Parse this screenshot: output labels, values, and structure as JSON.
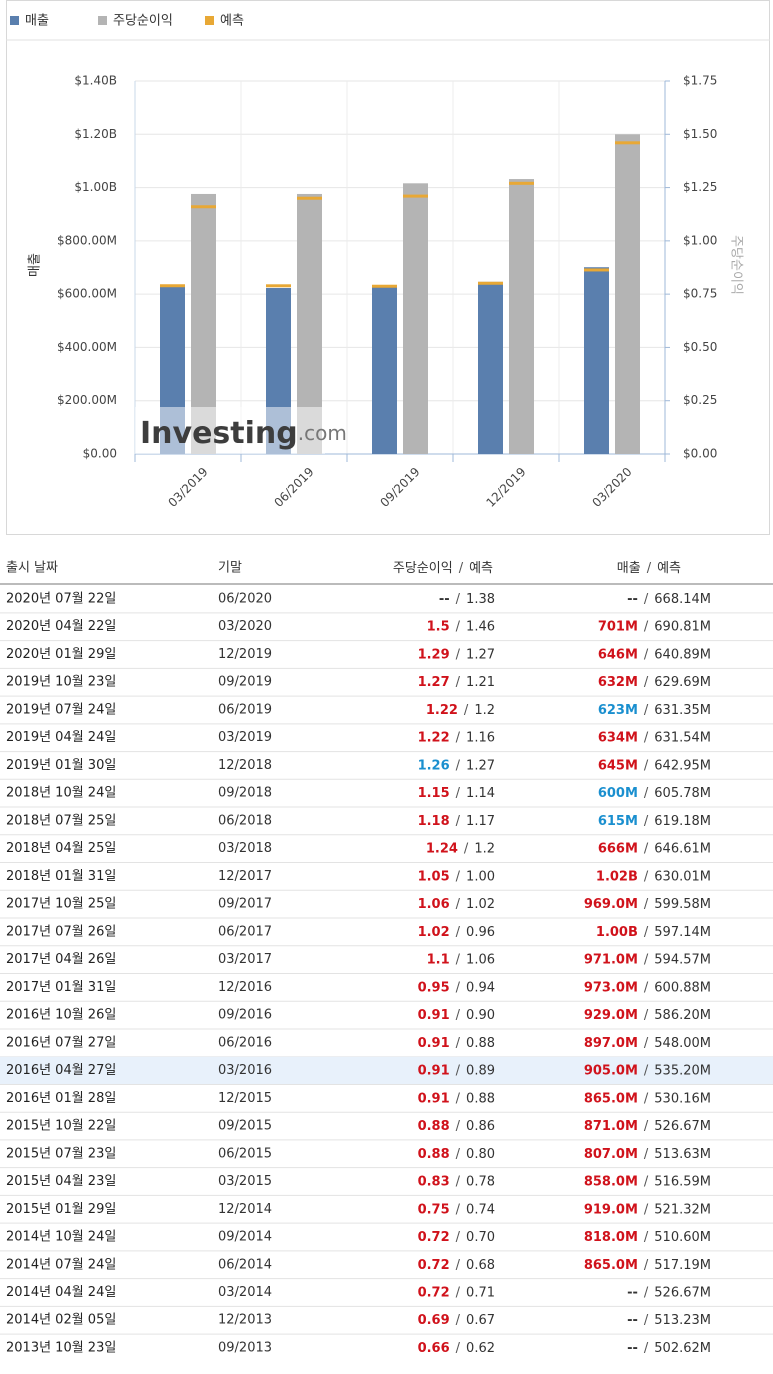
{
  "chart_data": {
    "type": "bar",
    "categories": [
      "03/2019",
      "06/2019",
      "09/2019",
      "12/2019",
      "03/2020"
    ],
    "series": [
      {
        "name": "매출",
        "color": "#5a7fae",
        "values": [
          634000000,
          623000000,
          632000000,
          646000000,
          701000000
        ],
        "forecast": [
          631540000,
          631350000,
          629690000,
          640890000,
          690810000
        ]
      },
      {
        "name": "주당순이익",
        "color": "#b4b4b4",
        "axis": "y2",
        "values": [
          1.22,
          1.22,
          1.27,
          1.29,
          1.5
        ],
        "forecast": [
          1.16,
          1.2,
          1.21,
          1.27,
          1.46
        ]
      }
    ],
    "forecast_name": "예측",
    "forecast_color": "#e8a835",
    "ylabel": "매출",
    "y2label": "주당순이익",
    "ylim": [
      0,
      1400000000
    ],
    "yticks": [
      {
        "value": 0,
        "label": "$0.00"
      },
      {
        "value": 200000000,
        "label": "$200.00M"
      },
      {
        "value": 400000000,
        "label": "$400.00M"
      },
      {
        "value": 600000000,
        "label": "$600.00M"
      },
      {
        "value": 800000000,
        "label": "$800.00M"
      },
      {
        "value": 1000000000,
        "label": "$1.00B"
      },
      {
        "value": 1200000000,
        "label": "$1.20B"
      },
      {
        "value": 1400000000,
        "label": "$1.40B"
      }
    ],
    "y2lim": [
      0,
      1.75
    ],
    "y2ticks": [
      {
        "value": 0,
        "label": "$0.00"
      },
      {
        "value": 0.25,
        "label": "$0.25"
      },
      {
        "value": 0.5,
        "label": "$0.50"
      },
      {
        "value": 0.75,
        "label": "$0.75"
      },
      {
        "value": 1,
        "label": "$1.00"
      },
      {
        "value": 1.25,
        "label": "$1.25"
      },
      {
        "value": 1.5,
        "label": "$1.50"
      },
      {
        "value": 1.75,
        "label": "$1.75"
      }
    ],
    "grid": true,
    "watermark": [
      "Investing",
      ".com"
    ]
  },
  "table": {
    "header": [
      "출시 날짜",
      "기말",
      "주당순이익",
      "예측",
      "매출",
      "예측"
    ],
    "separator": "/",
    "tone_colors": {
      "up": "#d0121b",
      "down": "#1a8fcf",
      "flat": "#333333"
    },
    "highlight_row": 17,
    "rows": [
      {
        "date": "2020년 07월 22일",
        "period": "06/2020",
        "eps": "--",
        "eps_forecast": "1.38",
        "revenue": "--",
        "revenue_forecast": "668.14M",
        "tones": [
          "flat",
          "flat"
        ]
      },
      {
        "date": "2020년 04월 22일",
        "period": "03/2020",
        "eps": "1.5",
        "eps_forecast": "1.46",
        "revenue": "701M",
        "revenue_forecast": "690.81M",
        "tones": [
          "up",
          "up"
        ]
      },
      {
        "date": "2020년 01월 29일",
        "period": "12/2019",
        "eps": "1.29",
        "eps_forecast": "1.27",
        "revenue": "646M",
        "revenue_forecast": "640.89M",
        "tones": [
          "up",
          "up"
        ]
      },
      {
        "date": "2019년 10월 23일",
        "period": "09/2019",
        "eps": "1.27",
        "eps_forecast": "1.21",
        "revenue": "632M",
        "revenue_forecast": "629.69M",
        "tones": [
          "up",
          "up"
        ]
      },
      {
        "date": "2019년 07월 24일",
        "period": "06/2019",
        "eps": "1.22",
        "eps_forecast": "1.2",
        "revenue": "623M",
        "revenue_forecast": "631.35M",
        "tones": [
          "up",
          "down"
        ]
      },
      {
        "date": "2019년 04월 24일",
        "period": "03/2019",
        "eps": "1.22",
        "eps_forecast": "1.16",
        "revenue": "634M",
        "revenue_forecast": "631.54M",
        "tones": [
          "up",
          "up"
        ]
      },
      {
        "date": "2019년 01월 30일",
        "period": "12/2018",
        "eps": "1.26",
        "eps_forecast": "1.27",
        "revenue": "645M",
        "revenue_forecast": "642.95M",
        "tones": [
          "down",
          "up"
        ]
      },
      {
        "date": "2018년 10월 24일",
        "period": "09/2018",
        "eps": "1.15",
        "eps_forecast": "1.14",
        "revenue": "600M",
        "revenue_forecast": "605.78M",
        "tones": [
          "up",
          "down"
        ]
      },
      {
        "date": "2018년 07월 25일",
        "period": "06/2018",
        "eps": "1.18",
        "eps_forecast": "1.17",
        "revenue": "615M",
        "revenue_forecast": "619.18M",
        "tones": [
          "up",
          "down"
        ]
      },
      {
        "date": "2018년 04월 25일",
        "period": "03/2018",
        "eps": "1.24",
        "eps_forecast": "1.2",
        "revenue": "666M",
        "revenue_forecast": "646.61M",
        "tones": [
          "up",
          "up"
        ]
      },
      {
        "date": "2018년 01월 31일",
        "period": "12/2017",
        "eps": "1.05",
        "eps_forecast": "1.00",
        "revenue": "1.02B",
        "revenue_forecast": "630.01M",
        "tones": [
          "up",
          "up"
        ]
      },
      {
        "date": "2017년 10월 25일",
        "period": "09/2017",
        "eps": "1.06",
        "eps_forecast": "1.02",
        "revenue": "969.0M",
        "revenue_forecast": "599.58M",
        "tones": [
          "up",
          "up"
        ]
      },
      {
        "date": "2017년 07월 26일",
        "period": "06/2017",
        "eps": "1.02",
        "eps_forecast": "0.96",
        "revenue": "1.00B",
        "revenue_forecast": "597.14M",
        "tones": [
          "up",
          "up"
        ]
      },
      {
        "date": "2017년 04월 26일",
        "period": "03/2017",
        "eps": "1.1",
        "eps_forecast": "1.06",
        "revenue": "971.0M",
        "revenue_forecast": "594.57M",
        "tones": [
          "up",
          "up"
        ]
      },
      {
        "date": "2017년 01월 31일",
        "period": "12/2016",
        "eps": "0.95",
        "eps_forecast": "0.94",
        "revenue": "973.0M",
        "revenue_forecast": "600.88M",
        "tones": [
          "up",
          "up"
        ]
      },
      {
        "date": "2016년 10월 26일",
        "period": "09/2016",
        "eps": "0.91",
        "eps_forecast": "0.90",
        "revenue": "929.0M",
        "revenue_forecast": "586.20M",
        "tones": [
          "up",
          "up"
        ]
      },
      {
        "date": "2016년 07월 27일",
        "period": "06/2016",
        "eps": "0.91",
        "eps_forecast": "0.88",
        "revenue": "897.0M",
        "revenue_forecast": "548.00M",
        "tones": [
          "up",
          "up"
        ]
      },
      {
        "date": "2016년 04월 27일",
        "period": "03/2016",
        "eps": "0.91",
        "eps_forecast": "0.89",
        "revenue": "905.0M",
        "revenue_forecast": "535.20M",
        "tones": [
          "up",
          "up"
        ]
      },
      {
        "date": "2016년 01월 28일",
        "period": "12/2015",
        "eps": "0.91",
        "eps_forecast": "0.88",
        "revenue": "865.0M",
        "revenue_forecast": "530.16M",
        "tones": [
          "up",
          "up"
        ]
      },
      {
        "date": "2015년 10월 22일",
        "period": "09/2015",
        "eps": "0.88",
        "eps_forecast": "0.86",
        "revenue": "871.0M",
        "revenue_forecast": "526.67M",
        "tones": [
          "up",
          "up"
        ]
      },
      {
        "date": "2015년 07월 23일",
        "period": "06/2015",
        "eps": "0.88",
        "eps_forecast": "0.80",
        "revenue": "807.0M",
        "revenue_forecast": "513.63M",
        "tones": [
          "up",
          "up"
        ]
      },
      {
        "date": "2015년 04월 23일",
        "period": "03/2015",
        "eps": "0.83",
        "eps_forecast": "0.78",
        "revenue": "858.0M",
        "revenue_forecast": "516.59M",
        "tones": [
          "up",
          "up"
        ]
      },
      {
        "date": "2015년 01월 29일",
        "period": "12/2014",
        "eps": "0.75",
        "eps_forecast": "0.74",
        "revenue": "919.0M",
        "revenue_forecast": "521.32M",
        "tones": [
          "up",
          "up"
        ]
      },
      {
        "date": "2014년 10월 24일",
        "period": "09/2014",
        "eps": "0.72",
        "eps_forecast": "0.70",
        "revenue": "818.0M",
        "revenue_forecast": "510.60M",
        "tones": [
          "up",
          "up"
        ]
      },
      {
        "date": "2014년 07월 24일",
        "period": "06/2014",
        "eps": "0.72",
        "eps_forecast": "0.68",
        "revenue": "865.0M",
        "revenue_forecast": "517.19M",
        "tones": [
          "up",
          "up"
        ]
      },
      {
        "date": "2014년 04월 24일",
        "period": "03/2014",
        "eps": "0.72",
        "eps_forecast": "0.71",
        "revenue": "--",
        "revenue_forecast": "526.67M",
        "tones": [
          "up",
          "flat"
        ]
      },
      {
        "date": "2014년 02월 05일",
        "period": "12/2013",
        "eps": "0.69",
        "eps_forecast": "0.67",
        "revenue": "--",
        "revenue_forecast": "513.23M",
        "tones": [
          "up",
          "flat"
        ]
      },
      {
        "date": "2013년 10월 23일",
        "period": "09/2013",
        "eps": "0.66",
        "eps_forecast": "0.62",
        "revenue": "--",
        "revenue_forecast": "502.62M",
        "tones": [
          "up",
          "flat"
        ]
      }
    ]
  }
}
